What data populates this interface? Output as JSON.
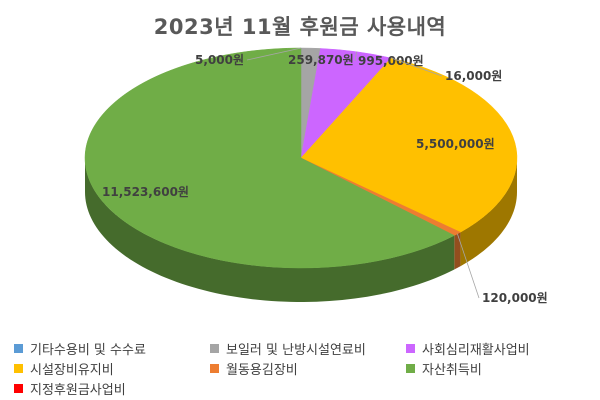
{
  "chart_data": {
    "type": "pie",
    "title": "2023년 11월 후원금 사용내역",
    "legend_position": "bottom",
    "slices": [
      {
        "name": "기타수용비 및 수수료",
        "value": 5000,
        "label": "5,000원",
        "color": "#5B9BD5"
      },
      {
        "name": "보일러 및 난방시설연료비",
        "value": 259870,
        "label": "259,870원",
        "color": "#A5A5A5"
      },
      {
        "name": "사회심리재활사업비",
        "value": 995000,
        "label": "995,000원",
        "color": "#CC66FF"
      },
      {
        "name": "시설장비유지비",
        "value": 16000,
        "label": "16,000원",
        "color": "#FFC000"
      },
      {
        "name": "월동용김장비",
        "value": 5500000,
        "label": "5,500,000원",
        "color": "#ED7D31"
      },
      {
        "name": "자산취득비",
        "value": 120000,
        "label": "120,000원",
        "color": "#70AD47"
      },
      {
        "name": "지정후원금사업비",
        "value": 11523600,
        "label": "11,523,600원",
        "color": "#FF0000"
      }
    ],
    "rendered_slices": [
      {
        "label": "5,000원",
        "value": 5000,
        "color": "#5B9BD5"
      },
      {
        "label": "259,870원",
        "value": 259870,
        "color": "#A5A5A5"
      },
      {
        "label": "995,000원",
        "value": 995000,
        "color": "#CC66FF"
      },
      {
        "label": "16,000원",
        "value": 16000,
        "color": "#FFC000"
      },
      {
        "label": "5,500,000원",
        "value": 5500000,
        "color": "#FFC000"
      },
      {
        "label": "120,000원",
        "value": 120000,
        "color": "#ED7D31"
      },
      {
        "label": "11,523,600원",
        "value": 11523600,
        "color": "#70AD47"
      }
    ]
  }
}
